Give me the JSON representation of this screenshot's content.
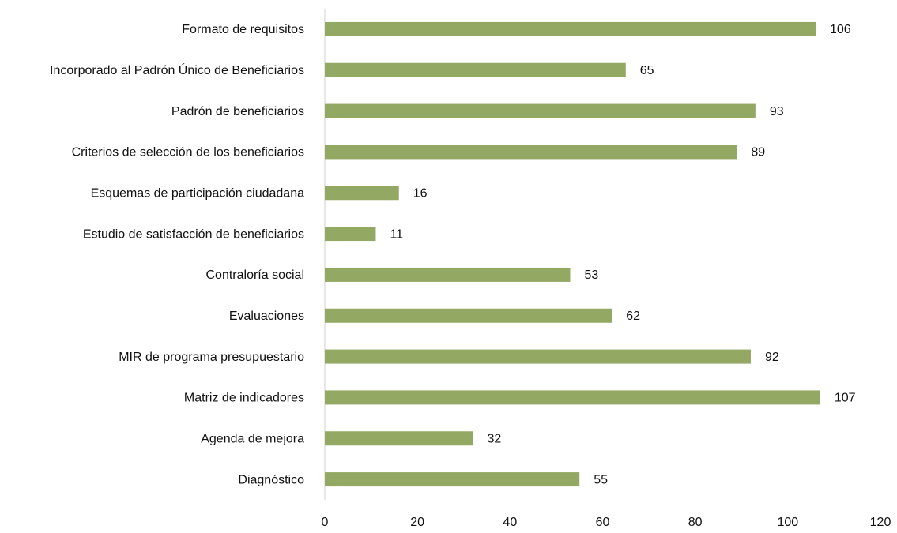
{
  "chart_data": {
    "type": "bar",
    "orientation": "horizontal",
    "categories": [
      "Formato de requisitos",
      "Incorporado al Padrón Único de Beneficiarios",
      "Padrón de beneficiarios",
      "Criterios de selección de los beneficiarios",
      "Esquemas de participación ciudadana",
      "Estudio de satisfacción de beneficiarios",
      "Contraloría social",
      "Evaluaciones",
      "MIR de programa presupuestario",
      "Matriz de indicadores",
      "Agenda de mejora",
      "Diagnóstico"
    ],
    "values": [
      106,
      65,
      93,
      89,
      16,
      11,
      53,
      62,
      92,
      107,
      32,
      55
    ],
    "color": "#93a862",
    "xlim": [
      0,
      120
    ],
    "xticks": [
      0,
      20,
      40,
      60,
      80,
      100,
      120
    ],
    "grid": false
  }
}
